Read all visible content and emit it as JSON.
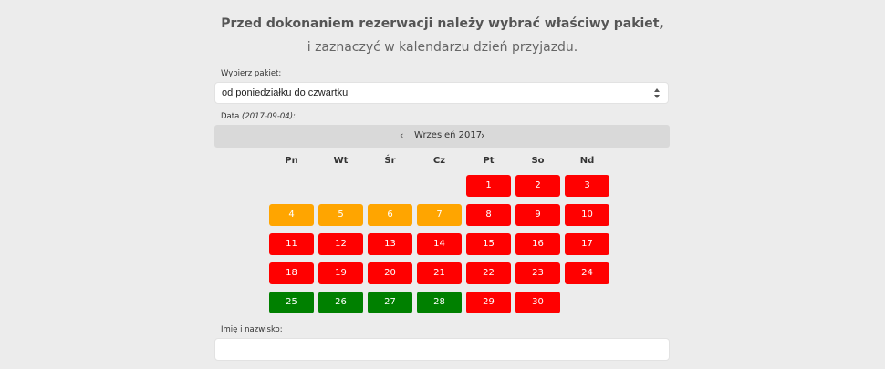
{
  "intro": {
    "line1": "Przed dokonaniem rezerwacji należy wybrać właściwy pakiet,",
    "line2": "i zaznaczyć w kalendarzu dzień przyjazdu."
  },
  "package": {
    "label": "Wybierz pakiet:",
    "selected": "od poniedziałku do czwartku"
  },
  "date": {
    "label": "Data",
    "value": "(2017-09-04):"
  },
  "calendar": {
    "prev": "‹",
    "next": "›",
    "month": "Wrzesień 2017",
    "weekdays": [
      "Pn",
      "Wt",
      "Śr",
      "Cz",
      "Pt",
      "So",
      "Nd"
    ],
    "days": [
      {
        "d": "1",
        "status": "red"
      },
      {
        "d": "2",
        "status": "red"
      },
      {
        "d": "3",
        "status": "red"
      },
      {
        "d": "4",
        "status": "orange"
      },
      {
        "d": "5",
        "status": "orange"
      },
      {
        "d": "6",
        "status": "orange"
      },
      {
        "d": "7",
        "status": "orange"
      },
      {
        "d": "8",
        "status": "red"
      },
      {
        "d": "9",
        "status": "red"
      },
      {
        "d": "10",
        "status": "red"
      },
      {
        "d": "11",
        "status": "red"
      },
      {
        "d": "12",
        "status": "red"
      },
      {
        "d": "13",
        "status": "red"
      },
      {
        "d": "14",
        "status": "red"
      },
      {
        "d": "15",
        "status": "red"
      },
      {
        "d": "16",
        "status": "red"
      },
      {
        "d": "17",
        "status": "red"
      },
      {
        "d": "18",
        "status": "red"
      },
      {
        "d": "19",
        "status": "red"
      },
      {
        "d": "20",
        "status": "red"
      },
      {
        "d": "21",
        "status": "red"
      },
      {
        "d": "22",
        "status": "red"
      },
      {
        "d": "23",
        "status": "red"
      },
      {
        "d": "24",
        "status": "red"
      },
      {
        "d": "25",
        "status": "green"
      },
      {
        "d": "26",
        "status": "green"
      },
      {
        "d": "27",
        "status": "green"
      },
      {
        "d": "28",
        "status": "green"
      },
      {
        "d": "29",
        "status": "red"
      },
      {
        "d": "30",
        "status": "red"
      }
    ],
    "colors": {
      "red": "#ff0000",
      "orange": "#ffa500",
      "green": "#008000"
    }
  },
  "name": {
    "label": "Imię i nazwisko:",
    "value": ""
  }
}
